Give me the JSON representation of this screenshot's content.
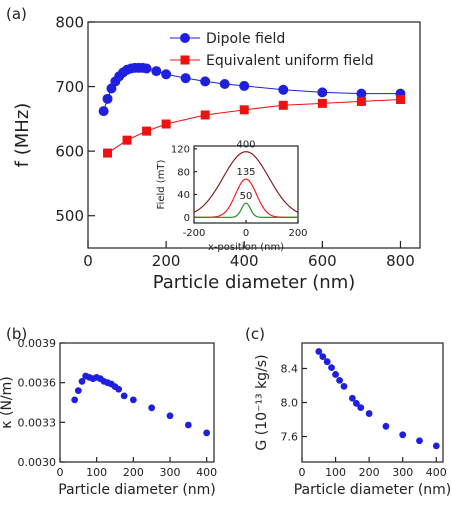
{
  "panels": {
    "a": {
      "label": "(a)"
    },
    "b": {
      "label": "(b)"
    },
    "c": {
      "label": "(c)"
    }
  },
  "colors": {
    "blue": "#1f1fe0",
    "red": "#ee1111",
    "brown": "#7a1212",
    "green": "#1b8a1b",
    "axis": "#222222"
  },
  "chart_data": [
    {
      "id": "a",
      "type": "line",
      "xlabel": "Particle diameter (nm)",
      "ylabel": "f (MHz)",
      "xlim": [
        0,
        850
      ],
      "ylim": [
        450,
        800
      ],
      "xticks": [
        0,
        200,
        400,
        600,
        800
      ],
      "yticks": [
        500,
        600,
        700,
        800
      ],
      "legend": "top-right",
      "series": [
        {
          "name": "Dipole field",
          "marker": "circle",
          "color": "#1f1fe0",
          "x": [
            40,
            50,
            60,
            70,
            80,
            90,
            100,
            110,
            120,
            130,
            140,
            150,
            175,
            200,
            250,
            300,
            350,
            400,
            500,
            600,
            700,
            800
          ],
          "y": [
            662,
            681,
            697,
            708,
            716,
            722,
            726,
            728,
            729,
            729,
            729,
            728,
            724,
            719,
            713,
            708,
            704,
            701,
            695,
            691,
            689,
            689
          ]
        },
        {
          "name": "Equivalent uniform field",
          "marker": "square",
          "color": "#ee1111",
          "x": [
            50,
            100,
            150,
            200,
            300,
            400,
            500,
            600,
            700,
            800
          ],
          "y": [
            597,
            617,
            631,
            642,
            656,
            664,
            671,
            674,
            677,
            680
          ]
        }
      ]
    },
    {
      "id": "a-inset",
      "type": "line",
      "xlabel": "x-position (nm)",
      "ylabel": "Field (mT)",
      "xlim": [
        -200,
        200
      ],
      "ylim": [
        -10,
        125
      ],
      "xticks": [
        -200,
        0,
        200
      ],
      "yticks": [
        0,
        40,
        80,
        120
      ],
      "series": [
        {
          "label": "400",
          "color": "#7a1212",
          "peak": 115,
          "sigma": 88
        },
        {
          "label": "135",
          "color": "#ee1111",
          "peak": 67,
          "sigma": 40
        },
        {
          "label": "50",
          "color": "#1b8a1b",
          "peak": 25,
          "sigma": 17
        }
      ]
    },
    {
      "id": "b",
      "type": "scatter",
      "xlabel": "Particle diameter (nm)",
      "ylabel": "κ (N/m)",
      "xlim": [
        0,
        420
      ],
      "ylim": [
        0.003,
        0.0039
      ],
      "xticks": [
        0,
        100,
        200,
        300,
        400
      ],
      "yticks": [
        0.003,
        0.0033,
        0.0036,
        0.0039
      ],
      "ytick_labels": [
        "0.0030",
        "0.0033",
        "0.0036",
        "0.0039"
      ],
      "series": [
        {
          "color": "#1f1fe0",
          "x": [
            40,
            50,
            60,
            70,
            80,
            90,
            100,
            110,
            120,
            130,
            140,
            150,
            160,
            175,
            200,
            250,
            300,
            350,
            400
          ],
          "y": [
            0.00347,
            0.00354,
            0.00361,
            0.00365,
            0.00364,
            0.00363,
            0.00364,
            0.00363,
            0.00361,
            0.0036,
            0.00359,
            0.00357,
            0.00355,
            0.0035,
            0.00347,
            0.00341,
            0.00335,
            0.00328,
            0.00322
          ]
        }
      ]
    },
    {
      "id": "c",
      "type": "scatter",
      "xlabel": "Particle diameter (nm)",
      "ylabel": "G (10⁻¹³ kg/s)",
      "xlim": [
        0,
        420
      ],
      "ylim": [
        7.3,
        8.7
      ],
      "xticks": [
        0,
        100,
        200,
        300,
        400
      ],
      "yticks": [
        7.6,
        8.0,
        8.4
      ],
      "ytick_labels": [
        "7.6",
        "8.0",
        "8.4"
      ],
      "series": [
        {
          "color": "#1f1fe0",
          "x": [
            50,
            62,
            75,
            88,
            100,
            112,
            125,
            150,
            162,
            175,
            200,
            250,
            300,
            350,
            400
          ],
          "y": [
            8.6,
            8.54,
            8.48,
            8.41,
            8.33,
            8.26,
            8.19,
            8.05,
            7.99,
            7.94,
            7.87,
            7.72,
            7.62,
            7.55,
            7.49
          ]
        }
      ]
    }
  ]
}
